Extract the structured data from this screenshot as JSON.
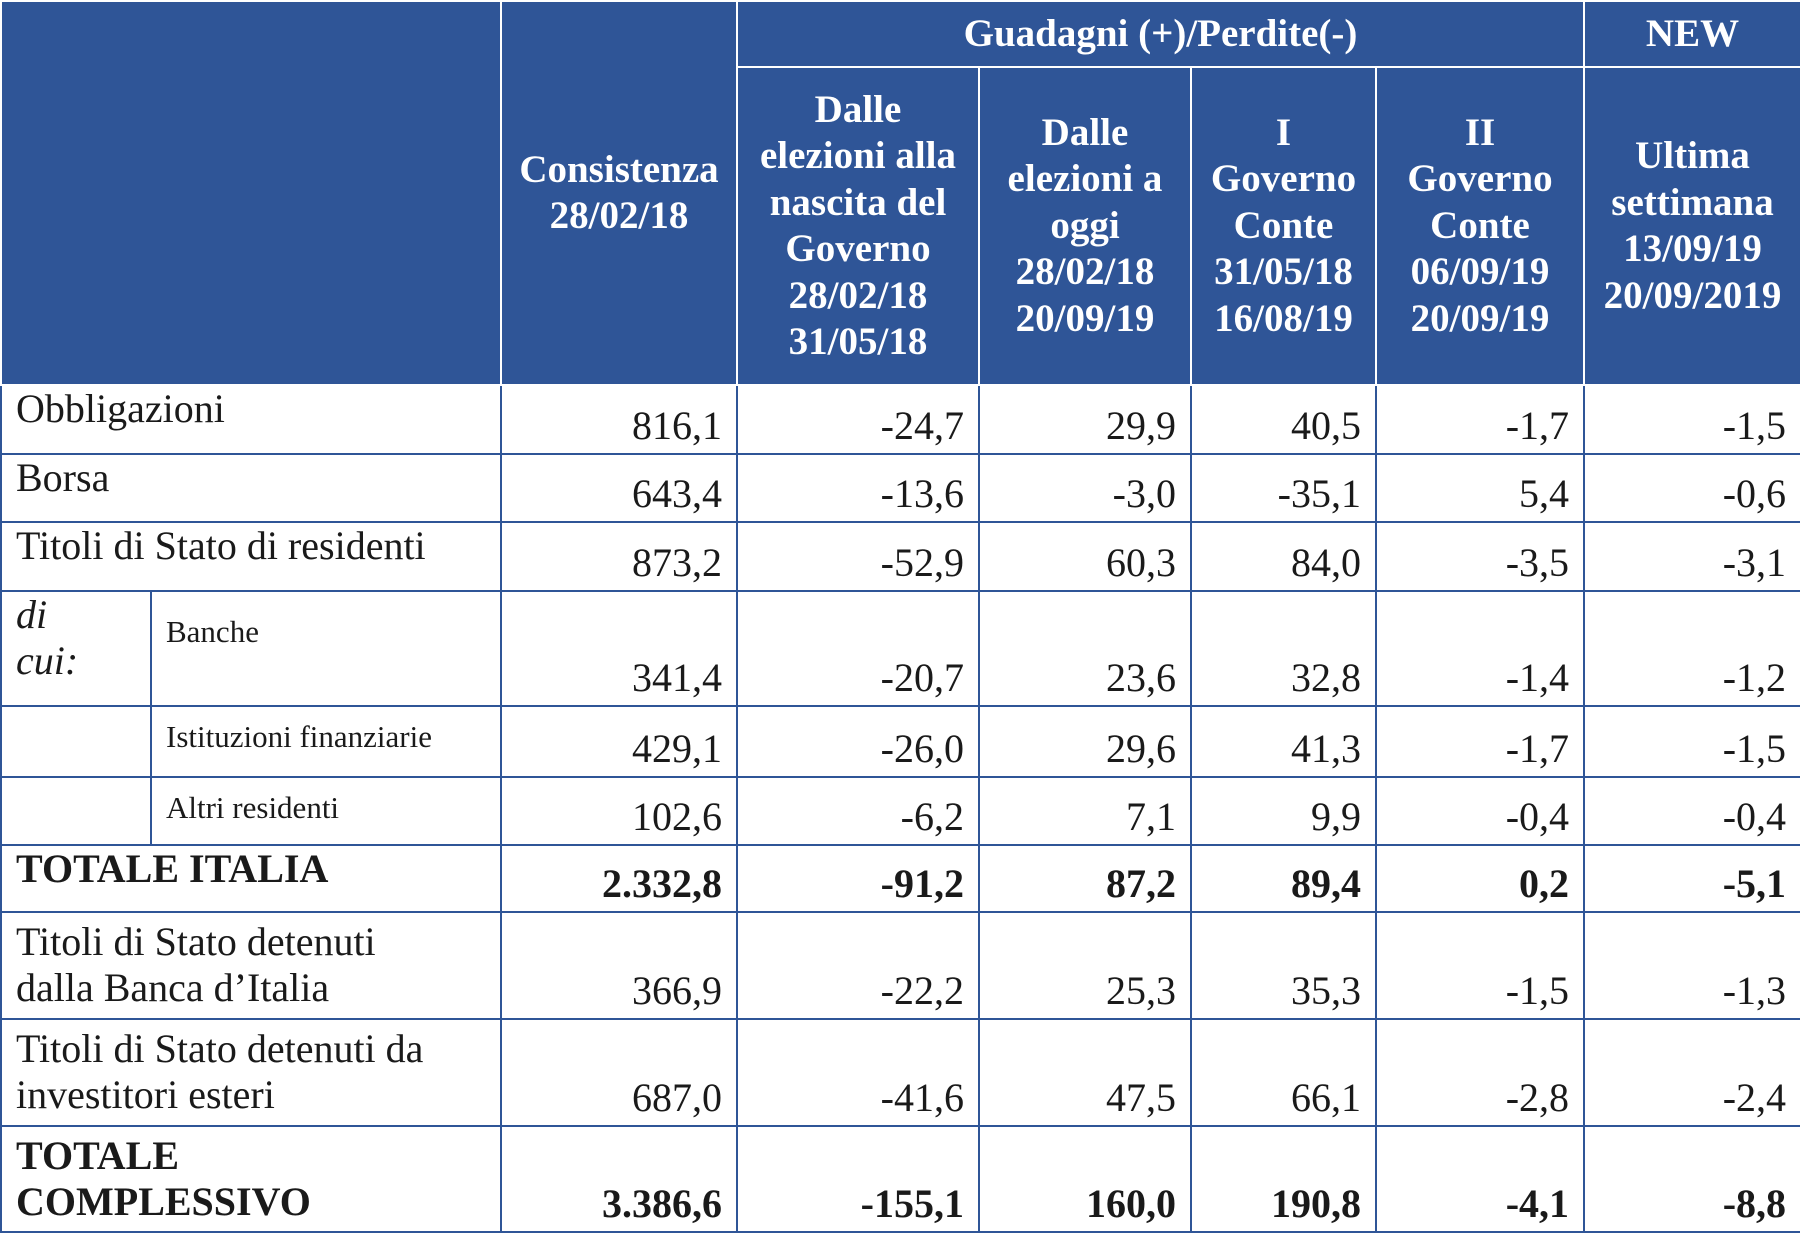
{
  "header": {
    "group_gains": "Guadagni (+)/Perdite(-)",
    "group_new": "NEW",
    "columns": [
      "Consistenza\n28/02/18",
      "Dalle\nelezioni alla\nnascita del\nGoverno\n28/02/18\n31/05/18",
      "Dalle\nelezioni a\noggi\n28/02/18\n20/09/19",
      "I\nGoverno\nConte\n31/05/18\n16/08/19",
      "II\nGoverno\nConte\n06/09/19\n20/09/19",
      "Ultima\nsettimana\n13/09/19\n20/09/2019"
    ]
  },
  "rows": {
    "obbligazioni": {
      "label": "Obbligazioni",
      "values": [
        "816,1",
        "-24,7",
        "29,9",
        "40,5",
        "-1,7",
        "-1,5"
      ]
    },
    "borsa": {
      "label": "Borsa",
      "values": [
        "643,4",
        "-13,6",
        "-3,0",
        "-35,1",
        "5,4",
        "-0,6"
      ]
    },
    "titoli_residenti": {
      "label": "Titoli di Stato di residenti",
      "values": [
        "873,2",
        "-52,9",
        "60,3",
        "84,0",
        "-3,5",
        "-3,1"
      ]
    },
    "di_cui_label": "di\ncui:",
    "banche": {
      "label": "Banche",
      "values": [
        "341,4",
        "-20,7",
        "23,6",
        "32,8",
        "-1,4",
        "-1,2"
      ]
    },
    "istituzioni": {
      "label": "Istituzioni finanziarie",
      "values": [
        "429,1",
        "-26,0",
        "29,6",
        "41,3",
        "-1,7",
        "-1,5"
      ]
    },
    "altri": {
      "label": "Altri residenti",
      "values": [
        "102,6",
        "-6,2",
        "7,1",
        "9,9",
        "-0,4",
        "-0,4"
      ]
    },
    "totale_italia": {
      "label": "TOTALE ITALIA",
      "values": [
        "2.332,8",
        "-91,2",
        "87,2",
        "89,4",
        "0,2",
        "-5,1"
      ]
    },
    "banca_italia": {
      "label": "Titoli di Stato detenuti\ndalla Banca d’Italia",
      "values": [
        "366,9",
        "-22,2",
        "25,3",
        "35,3",
        "-1,5",
        "-1,3"
      ]
    },
    "esteri": {
      "label": "Titoli di Stato detenuti da\ninvestitori esteri",
      "values": [
        "687,0",
        "-41,6",
        "47,5",
        "66,1",
        "-2,8",
        "-2,4"
      ]
    },
    "totale_complessivo": {
      "label": "TOTALE\nCOMPLESSIVO",
      "values": [
        "3.386,6",
        "-155,1",
        "160,0",
        "190,8",
        "-4,1",
        "-8,8"
      ]
    }
  },
  "colors": {
    "header_bg": "#2f5597",
    "header_text": "#ffffff",
    "grid": "#2f5597"
  }
}
